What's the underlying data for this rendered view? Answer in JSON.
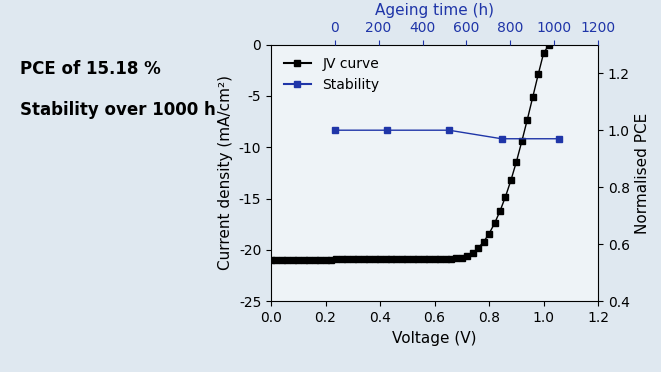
{
  "chart_data": {
    "type": "line",
    "annotations": [
      "PCE of 15.18 %",
      "Stability over 1000 h"
    ],
    "xlabel": "Voltage (V)",
    "ylabel": "Current density (mA/cm²)",
    "x2label": "Ageing time (h)",
    "y2label": "Normalised PCE",
    "xlim": [
      0,
      1.2
    ],
    "xticks": [
      {
        "value": 0,
        "label": "0.0"
      },
      0.2,
      0.4,
      0.6,
      0.8,
      {
        "value": 1,
        "label": "1.0"
      },
      1.2
    ],
    "ylim": [
      -25,
      0
    ],
    "yticks": [
      -25,
      -20,
      -15,
      -10,
      -5,
      0
    ],
    "x2lim": [
      -290,
      1200
    ],
    "x2ticks": [
      0,
      200,
      400,
      600,
      800,
      1000,
      1200
    ],
    "y2lim": [
      0.4,
      1.3
    ],
    "y2ticks": [
      0.4,
      0.6,
      0.8,
      {
        "value": 1,
        "label": "1.0"
      },
      1.2
    ],
    "legend": "upper left",
    "grid": false,
    "series": [
      {
        "name": "JV curve",
        "color": "#000000",
        "marker": "square",
        "line_style": "solid",
        "x": [
          0.0,
          0.02,
          0.04,
          0.06,
          0.08,
          0.1,
          0.12,
          0.14,
          0.16,
          0.18,
          0.2,
          0.22,
          0.24,
          0.26,
          0.28,
          0.3,
          0.32,
          0.34,
          0.36,
          0.38,
          0.4,
          0.42,
          0.44,
          0.46,
          0.48,
          0.5,
          0.52,
          0.54,
          0.56,
          0.58,
          0.6,
          0.62,
          0.64,
          0.66,
          0.68,
          0.7,
          0.72,
          0.74,
          0.76,
          0.78,
          0.8,
          0.82,
          0.84,
          0.86,
          0.88,
          0.9,
          0.92,
          0.94,
          0.96,
          0.98,
          1.0,
          1.02
        ],
        "values": [
          -21.0,
          -21.0,
          -21.0,
          -21.0,
          -21.0,
          -21.0,
          -21.0,
          -21.0,
          -21.0,
          -21.0,
          -21.0,
          -21.0,
          -20.9,
          -20.9,
          -20.9,
          -20.9,
          -20.9,
          -20.9,
          -20.9,
          -20.9,
          -20.9,
          -20.9,
          -20.9,
          -20.9,
          -20.9,
          -20.9,
          -20.9,
          -20.9,
          -20.9,
          -20.9,
          -20.9,
          -20.9,
          -20.9,
          -20.9,
          -20.8,
          -20.8,
          -20.6,
          -20.3,
          -19.8,
          -19.2,
          -18.4,
          -17.4,
          -16.2,
          -14.8,
          -13.2,
          -11.4,
          -9.4,
          -7.3,
          -5.1,
          -2.9,
          -0.8,
          0
        ]
      },
      {
        "name": "Stability",
        "color": "#1f35a8",
        "marker": "square",
        "line_style": "solid",
        "axis": "y2",
        "x": [
          0,
          240,
          520,
          760,
          1020
        ],
        "values": [
          1.0,
          1.0,
          1.0,
          0.97,
          0.97
        ]
      }
    ]
  }
}
